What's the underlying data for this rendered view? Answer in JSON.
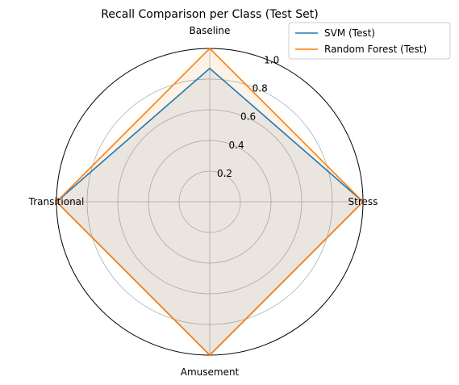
{
  "chart_data": {
    "type": "radar",
    "title": "Recall Comparison per Class (Test Set)",
    "categories": [
      "Baseline",
      "Stress",
      "Amusement",
      "Transitional"
    ],
    "rlim": [
      0,
      1.0
    ],
    "radial_ticks": [
      0.2,
      0.4,
      0.6,
      0.8,
      1.0
    ],
    "radial_tick_labels": [
      "0.2",
      "0.4",
      "0.6",
      "0.8",
      "1.0"
    ],
    "grid": true,
    "legend_position": "top-right",
    "series": [
      {
        "name": "SVM (Test)",
        "values": [
          0.87,
          1.0,
          1.0,
          1.0
        ],
        "color": "#1f77b4"
      },
      {
        "name": "Random Forest (Test)",
        "values": [
          1.0,
          1.0,
          1.0,
          1.0
        ],
        "color": "#ff7f0e"
      }
    ]
  }
}
